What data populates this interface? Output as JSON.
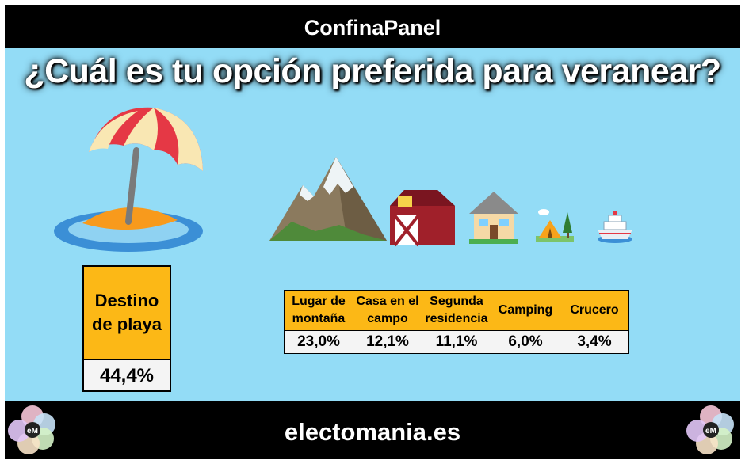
{
  "header": {
    "title": "ConfinaPanel"
  },
  "question": "¿Cuál es tu opción preferida para veranear?",
  "footer": {
    "site": "electomania.es",
    "logo_text": "eM"
  },
  "chart_data": {
    "type": "table",
    "top_option": {
      "label": "Destino de playa",
      "value_text": "44,4%",
      "value": 44.4
    },
    "options": [
      {
        "label": "Lugar de montaña",
        "value_text": "23,0%",
        "value": 23.0,
        "icon": "mountain-icon"
      },
      {
        "label": "Casa en el campo",
        "value_text": "12,1%",
        "value": 12.1,
        "icon": "barn-icon"
      },
      {
        "label": "Segunda residencia",
        "value_text": "11,1%",
        "value": 11.1,
        "icon": "house-icon"
      },
      {
        "label": "Camping",
        "value_text": "6,0%",
        "value": 6.0,
        "icon": "tent-icon"
      },
      {
        "label": "Crucero",
        "value_text": "3,4%",
        "value": 3.4,
        "icon": "cruise-ship-icon"
      }
    ]
  },
  "colors": {
    "sky": "#93dcf6",
    "cell_header": "#fcb816",
    "cell_value": "#f4f4f4",
    "bars": "#000000"
  }
}
